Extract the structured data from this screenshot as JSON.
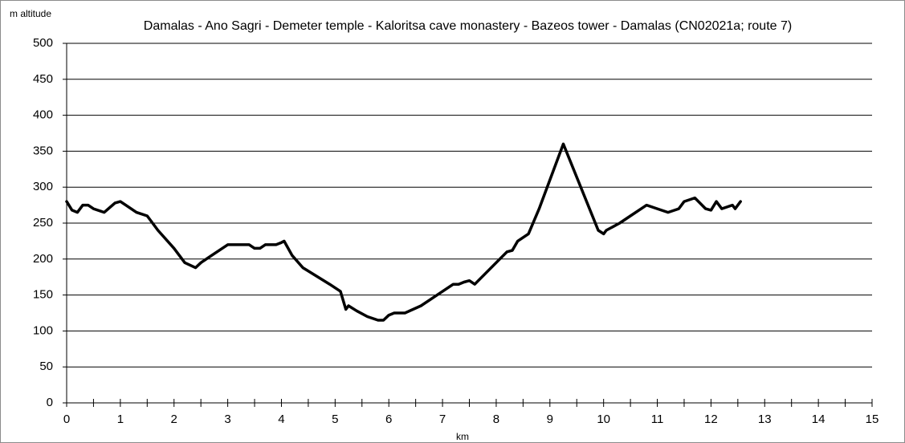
{
  "chart_data": {
    "type": "line",
    "title": "Damalas - Ano Sagri - Demeter temple - Kaloritsa cave monastery - Bazeos tower - Damalas (CN02021a; route 7)",
    "y_label": "m altitude",
    "x_label": "km",
    "x": [
      0,
      0.1,
      0.2,
      0.3,
      0.4,
      0.5,
      0.7,
      0.9,
      1.0,
      1.1,
      1.3,
      1.5,
      1.7,
      2.0,
      2.2,
      2.4,
      2.5,
      2.7,
      3.0,
      3.4,
      3.5,
      3.6,
      3.7,
      3.9,
      4.0,
      4.05,
      4.2,
      4.4,
      4.9,
      5.1,
      5.2,
      5.25,
      5.4,
      5.6,
      5.8,
      5.9,
      6.0,
      6.1,
      6.3,
      6.6,
      7.0,
      7.2,
      7.3,
      7.4,
      7.5,
      7.6,
      7.8,
      8.2,
      8.3,
      8.4,
      8.6,
      8.8,
      9.25,
      9.9,
      10.0,
      10.05,
      10.3,
      10.5,
      10.7,
      10.8,
      11.0,
      11.2,
      11.4,
      11.5,
      11.7,
      11.9,
      12.0,
      12.1,
      12.2,
      12.4,
      12.45,
      12.55
    ],
    "values": [
      280,
      268,
      265,
      275,
      275,
      270,
      265,
      278,
      280,
      275,
      265,
      260,
      240,
      215,
      195,
      188,
      195,
      205,
      220,
      220,
      215,
      215,
      220,
      220,
      223,
      225,
      205,
      188,
      165,
      155,
      130,
      135,
      128,
      120,
      115,
      115,
      122,
      125,
      125,
      135,
      155,
      165,
      165,
      168,
      170,
      165,
      180,
      210,
      212,
      225,
      235,
      270,
      360,
      240,
      235,
      240,
      250,
      260,
      270,
      275,
      270,
      265,
      270,
      280,
      285,
      270,
      268,
      280,
      270,
      275,
      270,
      280
    ],
    "color": "#000000",
    "xlim": [
      0,
      15
    ],
    "xticks": [
      0,
      1,
      2,
      3,
      4,
      5,
      6,
      7,
      8,
      9,
      10,
      11,
      12,
      13,
      14,
      15
    ],
    "xminorticks": [
      0.5,
      1.5,
      2.5,
      3.5,
      4.5,
      5.5,
      6.5,
      7.5,
      8.5,
      9.5,
      10.5,
      11.5,
      12.5,
      13.5,
      14.5
    ],
    "ylim": [
      0,
      500
    ],
    "yticks": [
      0,
      50,
      100,
      150,
      200,
      250,
      300,
      350,
      400,
      450,
      500
    ],
    "grid": true
  }
}
